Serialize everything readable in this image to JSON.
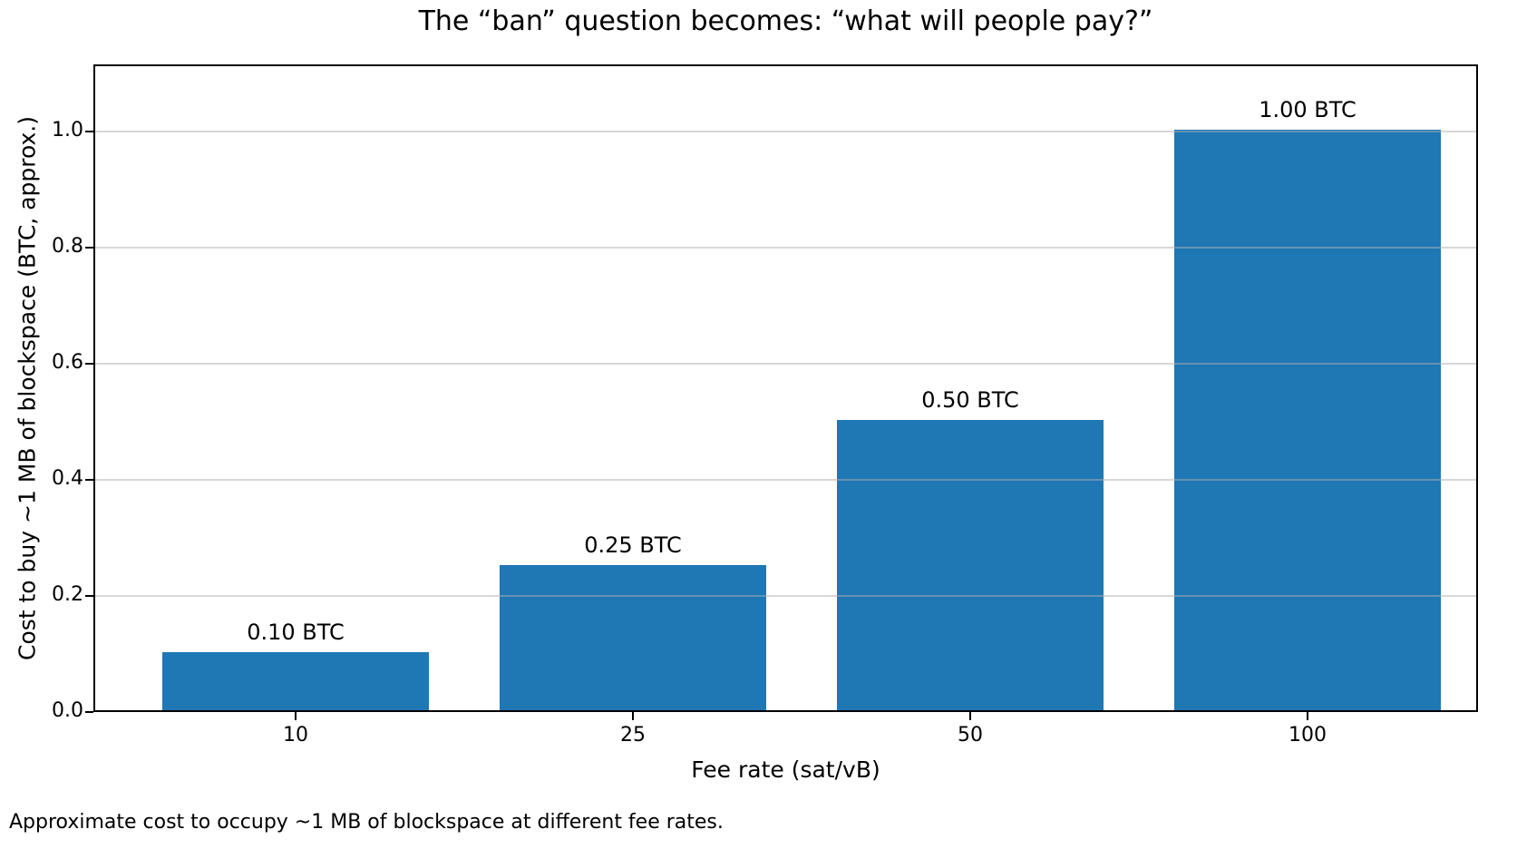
{
  "chart_data": {
    "type": "bar",
    "title": "The “ban” question becomes: “what will people pay?”",
    "xlabel": "Fee rate (sat/vB)",
    "ylabel": "Cost to buy ~1 MB of blockspace (BTC, approx.)",
    "categories": [
      "10",
      "25",
      "50",
      "100"
    ],
    "values": [
      0.1,
      0.25,
      0.5,
      1.0
    ],
    "bar_labels": [
      "0.10 BTC",
      "0.25 BTC",
      "0.50 BTC",
      "1.00 BTC"
    ],
    "ytick_values": [
      0.0,
      0.2,
      0.4,
      0.6,
      0.8,
      1.0
    ],
    "ytick_labels": [
      "0.0",
      "0.2",
      "0.4",
      "0.6",
      "0.8",
      "1.0"
    ],
    "ylim": [
      0,
      1.12
    ],
    "bar_color": "#1f77b4",
    "grid": true,
    "grid_color": "#b0b0b0",
    "grid_alpha": 0.5,
    "legend": "none",
    "caption": "Approximate cost to occupy ~1 MB of blockspace at different fee rates."
  }
}
